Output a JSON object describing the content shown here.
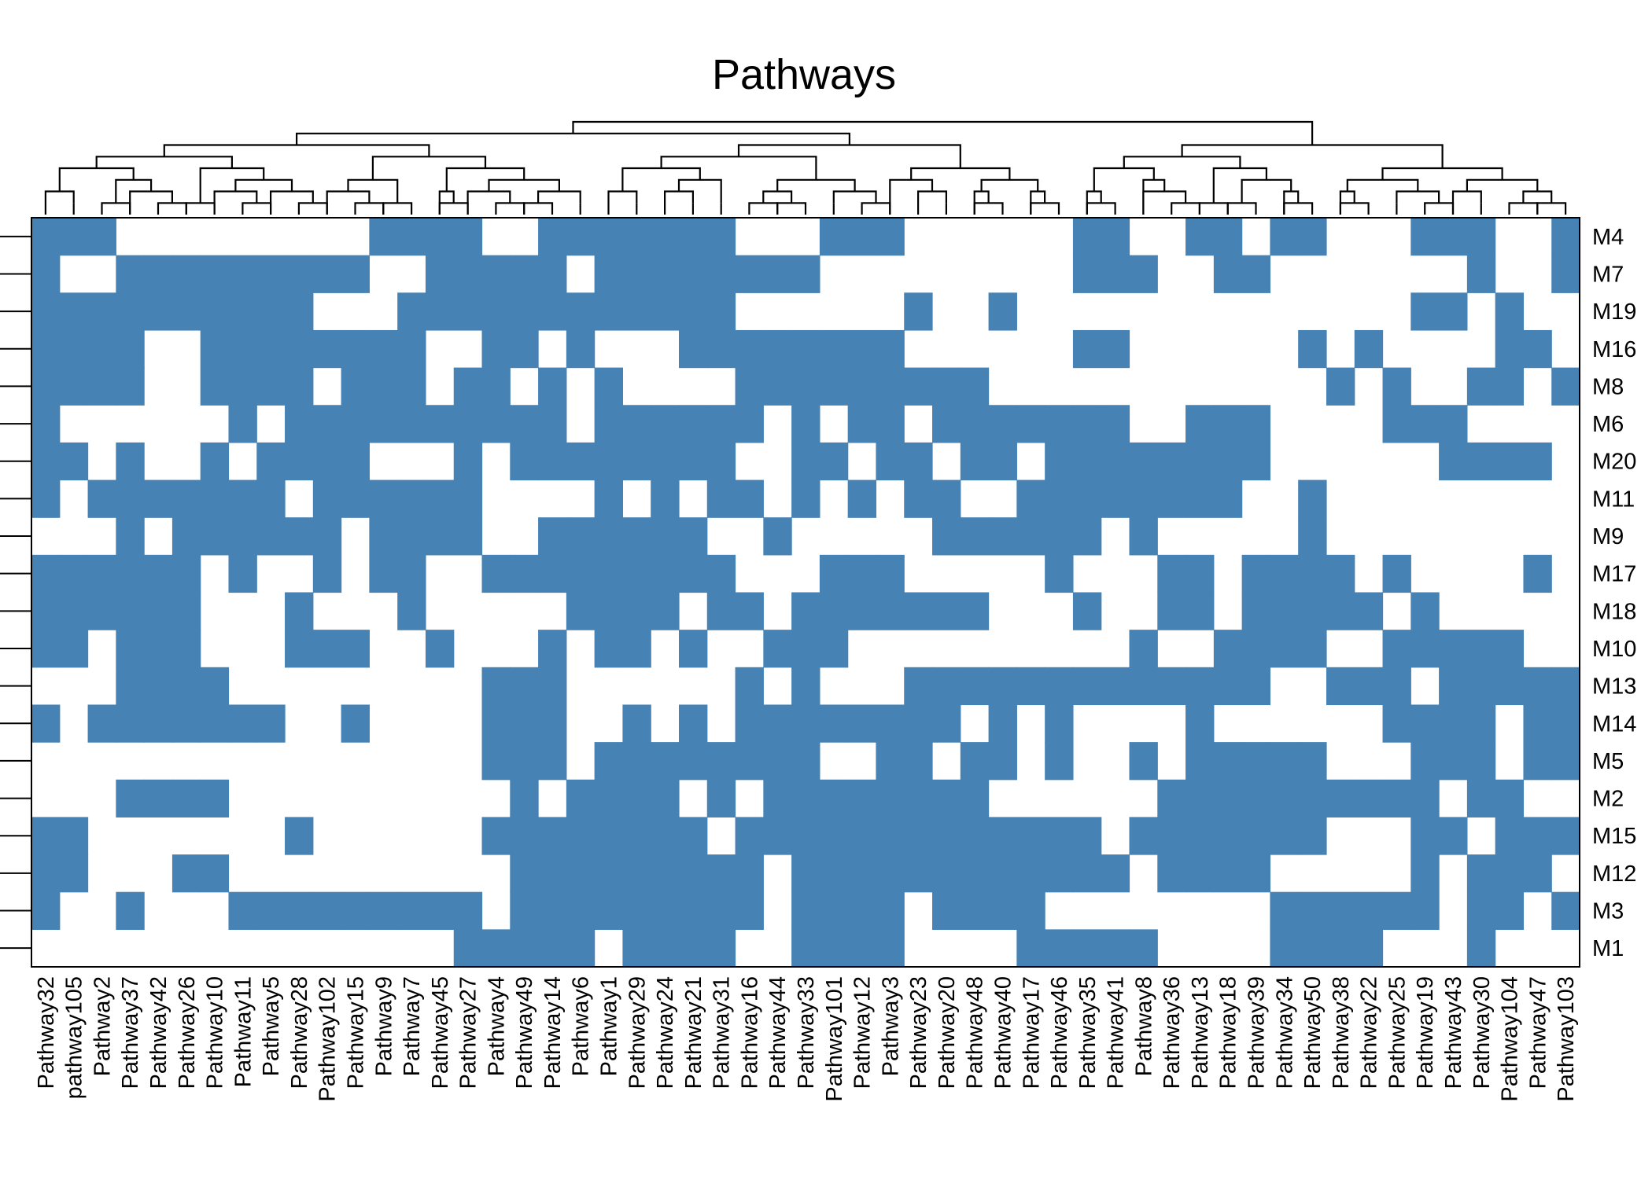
{
  "chart_data": {
    "type": "heatmap",
    "title": "Pathways",
    "value_colors": {
      "0": "#ffffff",
      "1": "#4682b4"
    },
    "dendrogram_columns": true,
    "row_ticks": true,
    "rows": [
      "M4",
      "M7",
      "M19",
      "M16",
      "M8",
      "M6",
      "M20",
      "M11",
      "M9",
      "M17",
      "M18",
      "M10",
      "M13",
      "M14",
      "M5",
      "M2",
      "M15",
      "M12",
      "M3",
      "M1"
    ],
    "columns": [
      "Pathway32",
      "pathway105",
      "Pathway2",
      "Pathway37",
      "Pathway42",
      "Pathway26",
      "Pathway10",
      "Pathway11",
      "Pathway5",
      "Pathway28",
      "Pathway102",
      "Pathway15",
      "Pathway9",
      "Pathway7",
      "Pathway45",
      "Pathway27",
      "Pathway4",
      "Pathway49",
      "Pathway14",
      "Pathway6",
      "Pathway1",
      "Pathway29",
      "Pathway24",
      "Pathway21",
      "Pathway31",
      "Pathway16",
      "Pathway44",
      "Pathway33",
      "Pathway101",
      "Pathway12",
      "Pathway3",
      "Pathway23",
      "Pathway20",
      "Pathway48",
      "Pathway40",
      "Pathway17",
      "Pathway46",
      "Pathway35",
      "Pathway41",
      "Pathway8",
      "Pathway36",
      "Pathway13",
      "Pathway18",
      "Pathway39",
      "Pathway34",
      "Pathway50",
      "Pathway38",
      "Pathway22",
      "Pathway25",
      "Pathway19",
      "Pathway43",
      "Pathway30",
      "Pathway104",
      "Pathway47",
      "Pathway103"
    ],
    "matrix": [
      "1110000000001111001111111000111000000110011011000111001",
      "1001111111110011111011111111000000000111001100000001001",
      "1111111111000111111111111000000100100000000000000110100",
      "1111001111111100110100011111111000000110000001010000110",
      "1111001111011101101010000111111111000000000000101001101",
      "1000000101111111111011111101011011111110011100001110000",
      "1101001011110001011111111001101101101111111100000011110",
      "1011111110111111000010101101010110011111111001000000000",
      "0001011111101111001111110010000011111101000001000000000",
      "1111110100101100111111111000111000001000110111101000010",
      "1111110001000100000111101101111111000100110111110100000",
      "1101110001110010001011010011100000000001001111001111100",
      "0001111000000000111000000101000111111111111100111011111",
      "1011111110010000111001010111111110101000010000001111011",
      "0000000000000000111011111111001101101001011111000111011",
      "0001111000000000010111101011111111000000111111111101100",
      "1100000001000000111111110111111111111101111111000110111",
      "1100011000000000011111111101111111111110111100000101110",
      "1001000111111111011111111101111011110000000011111101101",
      "0000000000000001111101111001111000011111000011110001000"
    ],
    "matrix_note": "rows top-to-bottom, columns left-to-right"
  }
}
